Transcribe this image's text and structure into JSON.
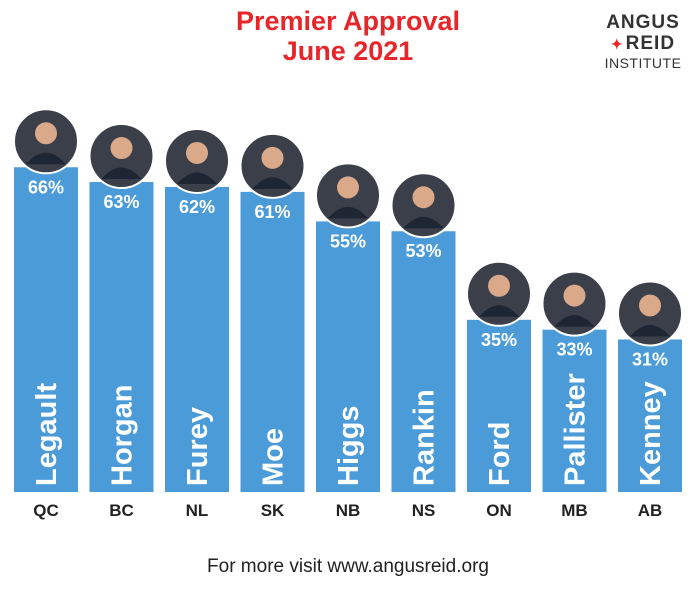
{
  "header": {
    "title_line1": "Premier Approval",
    "title_line2": "June 2021"
  },
  "logo": {
    "line1": "ANGUS",
    "line2": "REID",
    "line3": "INSTITUTE",
    "leaf_icon": "maple-leaf-icon"
  },
  "footer": {
    "text": "For more visit www.angusreid.org"
  },
  "colors": {
    "bar": "#4a9bd8",
    "title": "#e8262a",
    "leaf": "#e8262a",
    "bar_text": "#ffffff",
    "axis_text": "#222222"
  },
  "chart_data": {
    "type": "bar",
    "title": "Premier Approval June 2021",
    "categories": [
      "QC",
      "BC",
      "NL",
      "SK",
      "NB",
      "NS",
      "ON",
      "MB",
      "AB"
    ],
    "premiers": [
      "Legault",
      "Horgan",
      "Furey",
      "Moe",
      "Higgs",
      "Rankin",
      "Ford",
      "Pallister",
      "Kenney"
    ],
    "values": [
      66,
      63,
      62,
      61,
      55,
      53,
      35,
      33,
      31
    ],
    "value_labels": [
      "66%",
      "63%",
      "62%",
      "61%",
      "55%",
      "53%",
      "35%",
      "33%",
      "31%"
    ],
    "ylim": [
      0,
      100
    ],
    "grid": false,
    "legend": "none"
  }
}
